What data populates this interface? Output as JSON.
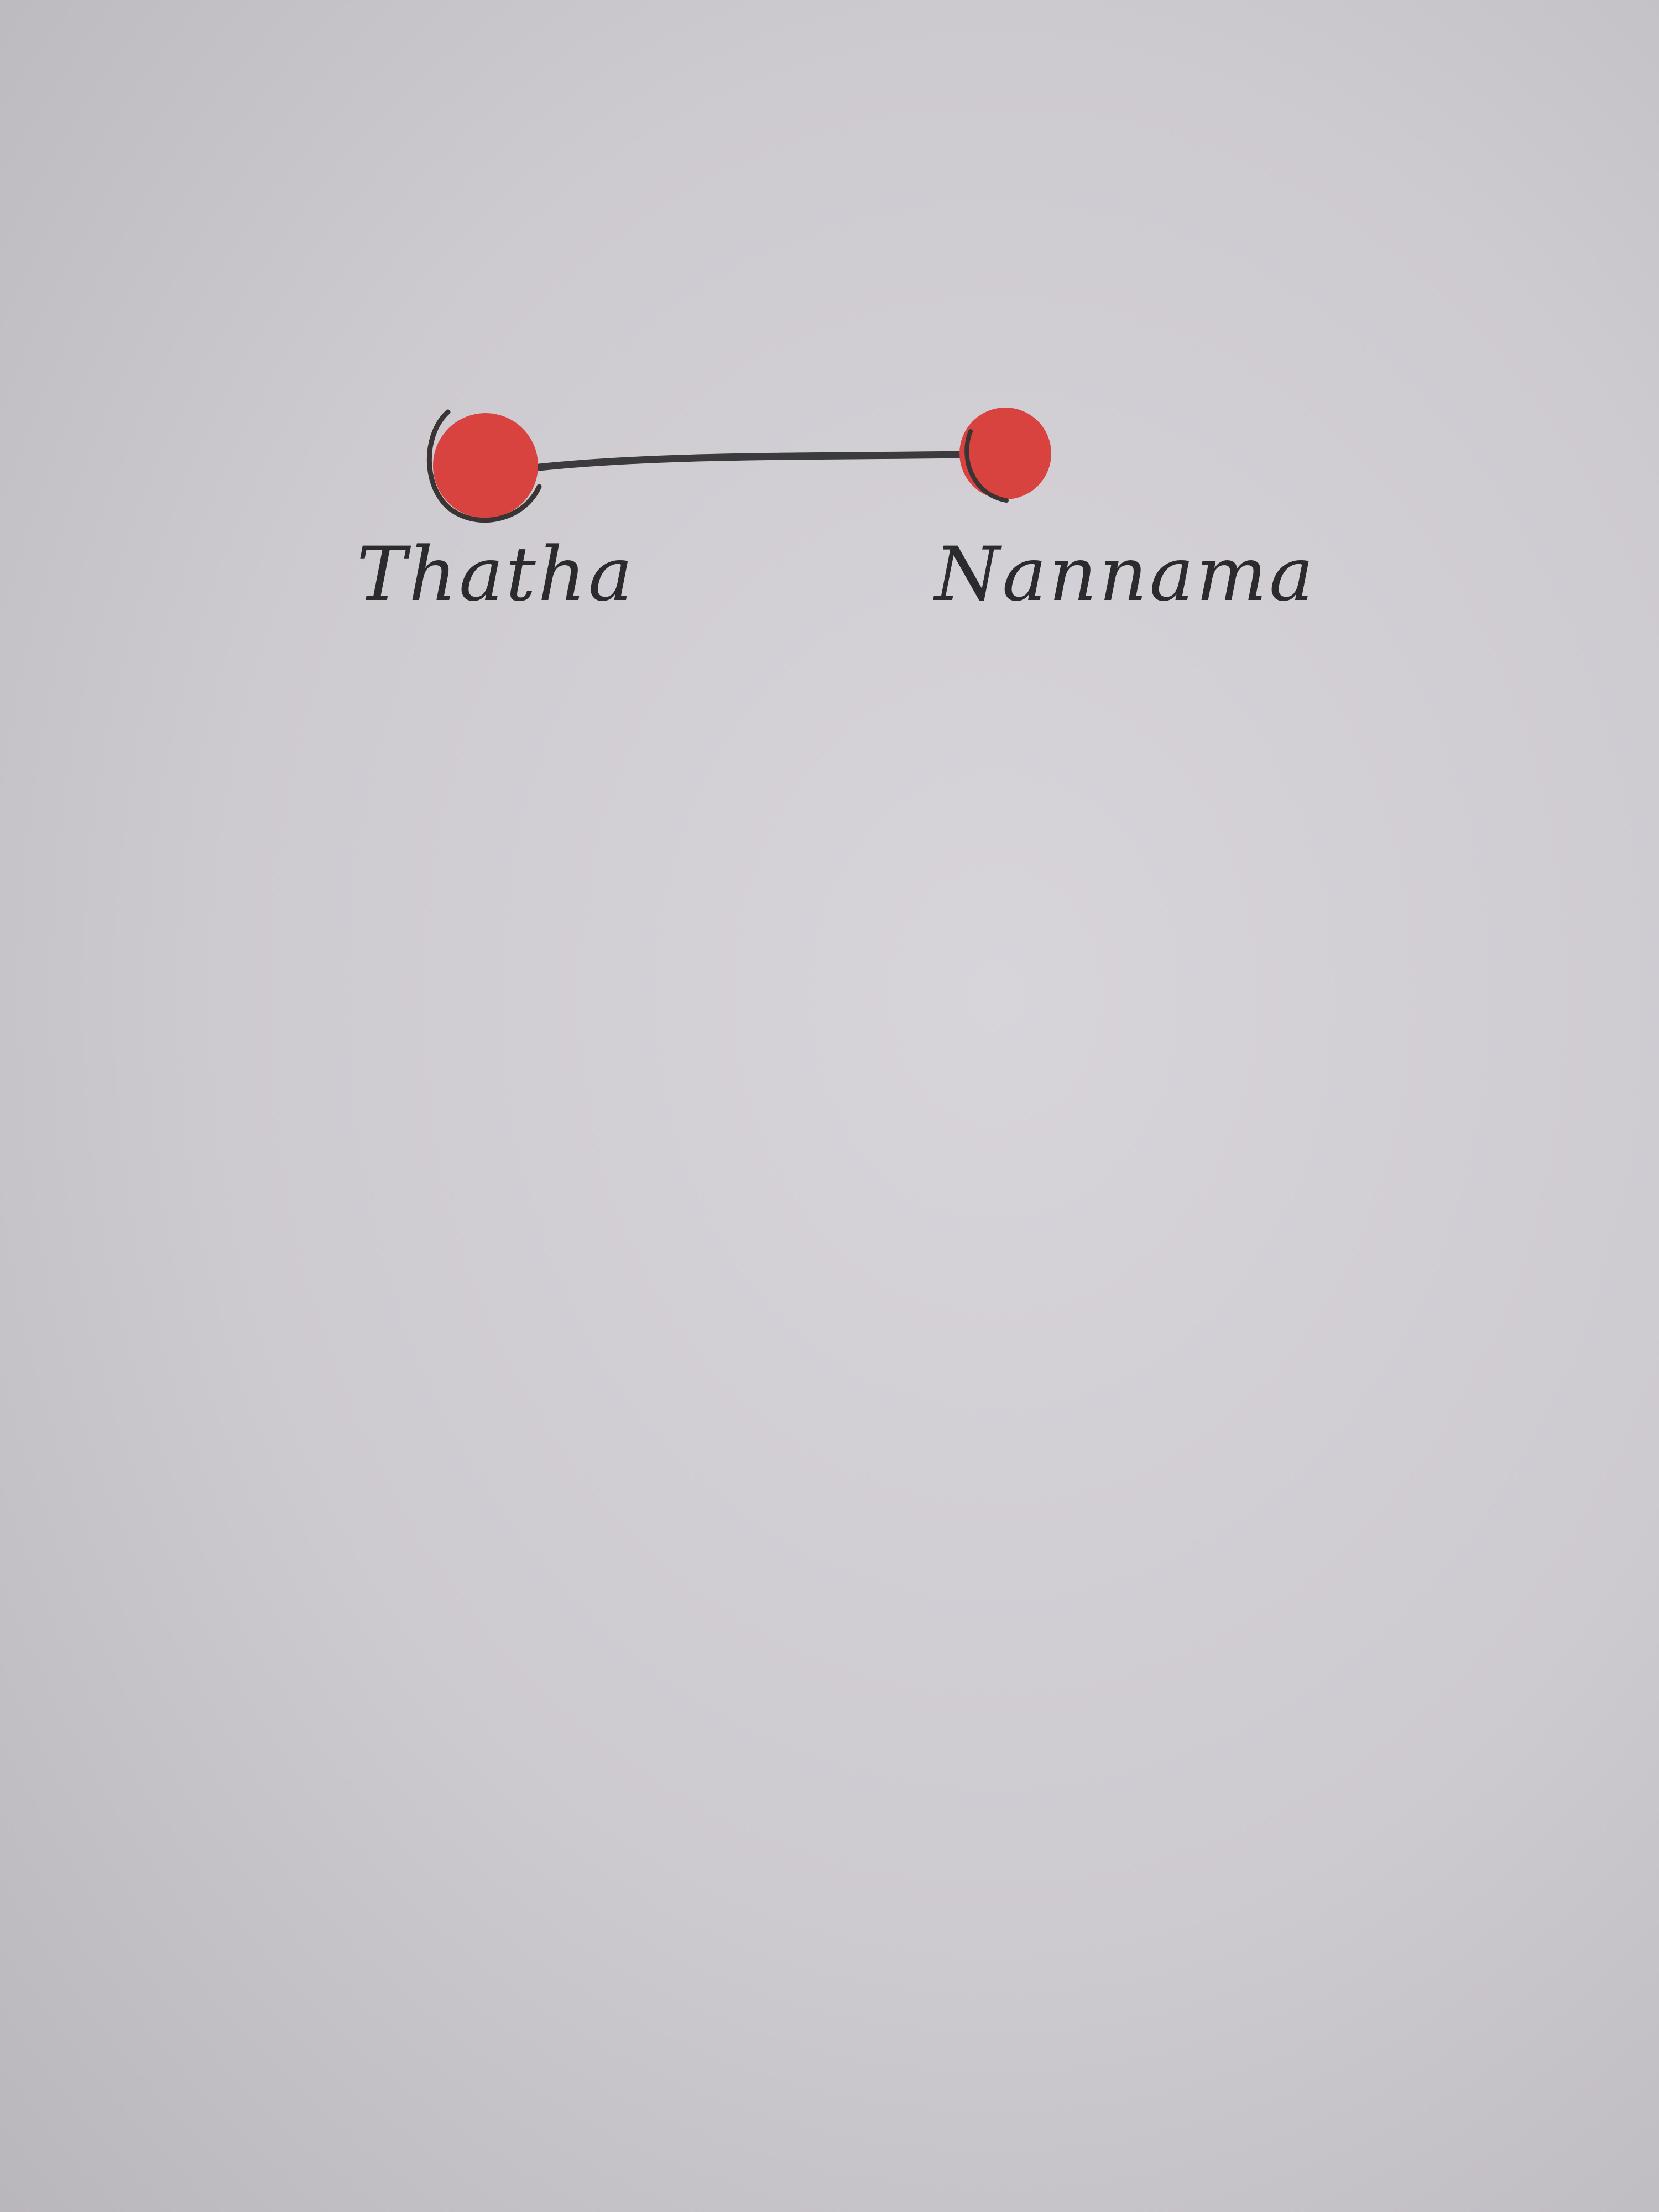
{
  "family_tree": {
    "nodes": [
      {
        "id": "left",
        "name": "Thatha"
      },
      {
        "id": "right",
        "name": "Nannama"
      }
    ],
    "edges": [
      {
        "from": "left",
        "to": "right"
      }
    ]
  },
  "colors": {
    "paper": "#cdcad0",
    "node_fill": "#d8423f",
    "node_outline": "#3a3434",
    "line": "#3b3b3d",
    "ink": "#2b2b2e"
  }
}
